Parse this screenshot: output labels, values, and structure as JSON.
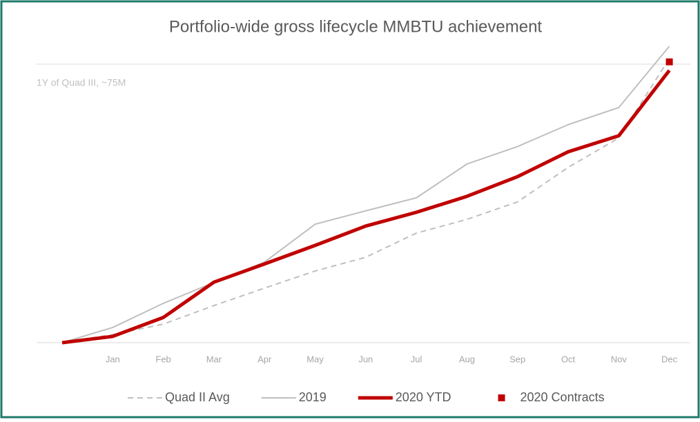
{
  "chart_data": {
    "type": "line",
    "title": "Portfolio-wide gross lifecycle MMBTU achievement",
    "categories": [
      null,
      "Jan",
      "Feb",
      "Mar",
      "Apr",
      "May",
      "Jun",
      "Jul",
      "Aug",
      "Sep",
      "Oct",
      "Nov",
      "Dec"
    ],
    "series": [
      {
        "name": "Quad II Avg",
        "color": "#bfbfbf",
        "dash": true,
        "width": 2,
        "values": [
          0,
          2.2,
          5.0,
          10.0,
          14.7,
          19.3,
          23.0,
          29.5,
          33.2,
          37.9,
          47.2,
          55.1,
          76.5
        ]
      },
      {
        "name": "2019",
        "color": "#bfbfbf",
        "dash": false,
        "width": 2,
        "values": [
          0,
          4.1,
          10.6,
          16.2,
          21.7,
          31.9,
          35.5,
          39.0,
          48.1,
          52.8,
          58.7,
          63.3,
          79.8
        ]
      },
      {
        "name": "2020 YTD",
        "color": "#c00000",
        "dash": false,
        "width": 5,
        "values": [
          0,
          1.7,
          6.8,
          16.3,
          21.2,
          26.2,
          31.4,
          35.1,
          39.4,
          44.7,
          51.4,
          55.7,
          73.3
        ]
      },
      {
        "name": "2020 Contracts",
        "color": "#c00000",
        "marker": "square",
        "values": [
          null,
          null,
          null,
          null,
          null,
          null,
          null,
          null,
          null,
          null,
          null,
          null,
          75.6
        ]
      }
    ],
    "reference_lines": [
      {
        "value": 75,
        "label": "1Y of Quad III, ~75M",
        "color": "#d9d9d9"
      }
    ],
    "ylim": [
      0,
      80
    ],
    "legend": "bottom"
  }
}
